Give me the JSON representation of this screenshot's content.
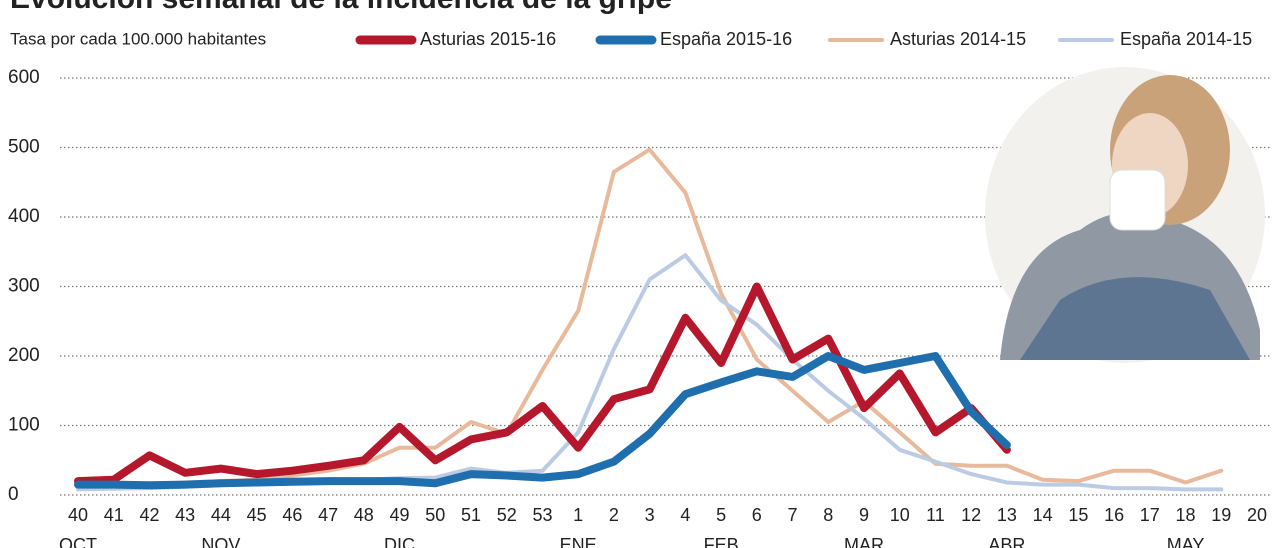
{
  "chart_data": {
    "type": "line",
    "title": "Evolución semanal de la incidencia de la gripe",
    "subtitle": "Tasa por cada 100.000 habitantes",
    "categories": [
      "40",
      "41",
      "42",
      "43",
      "44",
      "45",
      "46",
      "47",
      "48",
      "49",
      "50",
      "51",
      "52",
      "53",
      "1",
      "2",
      "3",
      "4",
      "5",
      "6",
      "7",
      "8",
      "9",
      "10",
      "11",
      "12",
      "13",
      "14",
      "15",
      "16",
      "17",
      "18",
      "19",
      "20"
    ],
    "month_labels": [
      "OCT",
      null,
      null,
      null,
      "NOV",
      null,
      null,
      null,
      null,
      "DIC",
      null,
      null,
      null,
      null,
      "ENE",
      null,
      null,
      null,
      "FEB",
      null,
      null,
      null,
      "MAR",
      null,
      null,
      null,
      "ABR",
      null,
      null,
      null,
      null,
      "MAY",
      null,
      null
    ],
    "series": [
      {
        "name": "Asturias 2014-15",
        "color": "#e8b99a",
        "values": [
          10,
          12,
          15,
          18,
          20,
          22,
          28,
          35,
          45,
          68,
          68,
          105,
          88,
          180,
          265,
          465,
          497,
          435,
          290,
          195,
          150,
          105,
          135,
          90,
          45,
          42,
          42,
          22,
          20,
          35,
          35,
          18,
          35,
          null
        ]
      },
      {
        "name": "España 2014-15",
        "color": "#bccbe4",
        "values": [
          8,
          9,
          10,
          12,
          14,
          16,
          18,
          20,
          22,
          24,
          25,
          38,
          32,
          35,
          90,
          210,
          310,
          345,
          280,
          245,
          195,
          150,
          110,
          65,
          48,
          30,
          18,
          15,
          15,
          10,
          10,
          8,
          8,
          null
        ]
      },
      {
        "name": "Asturias 2015-16",
        "color": "#b5182c",
        "values": [
          20,
          22,
          57,
          32,
          38,
          30,
          35,
          42,
          50,
          98,
          50,
          80,
          90,
          128,
          68,
          138,
          152,
          255,
          190,
          300,
          195,
          225,
          125,
          175,
          90,
          125,
          65,
          null,
          null,
          null,
          null,
          null,
          null,
          null
        ]
      },
      {
        "name": "España 2015-16",
        "color": "#1f6fae",
        "values": [
          15,
          15,
          14,
          15,
          17,
          18,
          19,
          20,
          20,
          20,
          17,
          30,
          28,
          25,
          30,
          48,
          88,
          145,
          162,
          178,
          170,
          200,
          180,
          190,
          200,
          120,
          72,
          null,
          null,
          null,
          null,
          null,
          null,
          null
        ]
      }
    ],
    "ylim": [
      0,
      600
    ],
    "yticks": [
      0,
      100,
      200,
      300,
      400,
      500,
      600
    ],
    "grid": true
  }
}
